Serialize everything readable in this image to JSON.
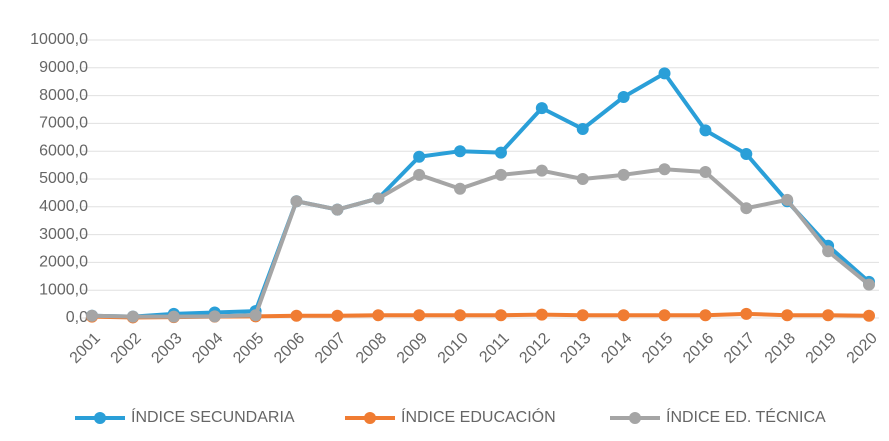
{
  "chart_data": {
    "type": "line",
    "categories": [
      "2001",
      "2002",
      "2003",
      "2004",
      "2005",
      "2006",
      "2007",
      "2008",
      "2009",
      "2010",
      "2011",
      "2012",
      "2013",
      "2014",
      "2015",
      "2016",
      "2017",
      "2018",
      "2019",
      "2020"
    ],
    "series": [
      {
        "name": "ÍNDICE SECUNDARIA",
        "color": "#2a9fd8",
        "values": [
          80,
          50,
          150,
          200,
          250,
          4200,
          3900,
          4300,
          5800,
          6000,
          5950,
          7550,
          6800,
          7950,
          8800,
          6750,
          5900,
          4200,
          2600,
          1300
        ]
      },
      {
        "name": "ÍNDICE EDUCACIÓN",
        "color": "#f07c32",
        "values": [
          50,
          20,
          30,
          50,
          60,
          80,
          80,
          100,
          100,
          100,
          100,
          120,
          100,
          100,
          100,
          100,
          150,
          100,
          100,
          80
        ]
      },
      {
        "name": "ÍNDICE ED. TÉCNICA",
        "color": "#a5a5a5",
        "values": [
          80,
          50,
          50,
          60,
          100,
          4200,
          3900,
          4300,
          5150,
          4650,
          5150,
          5300,
          5000,
          5150,
          5350,
          5250,
          3950,
          4250,
          2400,
          1200
        ]
      }
    ],
    "ylim": [
      0,
      10000
    ],
    "yticks": [
      {
        "value": 0,
        "label": "0,0"
      },
      {
        "value": 1000,
        "label": "1000,0"
      },
      {
        "value": 2000,
        "label": "2000,0"
      },
      {
        "value": 3000,
        "label": "3000,0"
      },
      {
        "value": 4000,
        "label": "4000,0"
      },
      {
        "value": 5000,
        "label": "5000,0"
      },
      {
        "value": 6000,
        "label": "6000,0"
      },
      {
        "value": 7000,
        "label": "7000,0"
      },
      {
        "value": 8000,
        "label": "8000,0"
      },
      {
        "value": 9000,
        "label": "9000,0"
      },
      {
        "value": 10000,
        "label": "10000,0"
      }
    ],
    "grid": true,
    "legend": "bottom"
  }
}
